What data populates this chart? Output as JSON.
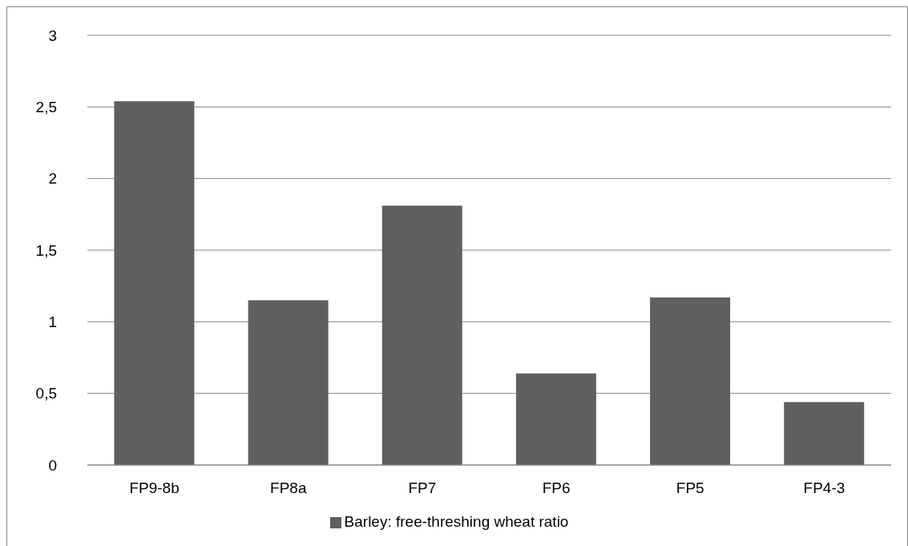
{
  "chart_data": {
    "type": "bar",
    "categories": [
      "FP9-8b",
      "FP8a",
      "FP7",
      "FP6",
      "FP5",
      "FP4-3"
    ],
    "series": [
      {
        "name": "Barley: free-threshing wheat ratio",
        "color": "#5f5f5f",
        "values": [
          2.54,
          1.15,
          1.81,
          0.64,
          1.17,
          0.44
        ]
      }
    ],
    "ylim": [
      0,
      3
    ],
    "yticks": [
      0,
      {
        "value": 0.5,
        "label": "0,5"
      },
      1,
      {
        "value": 1.5,
        "label": "1,5"
      },
      2,
      {
        "value": 2.5,
        "label": "2,5"
      },
      3
    ],
    "grid": "y",
    "legend": "bottom"
  }
}
